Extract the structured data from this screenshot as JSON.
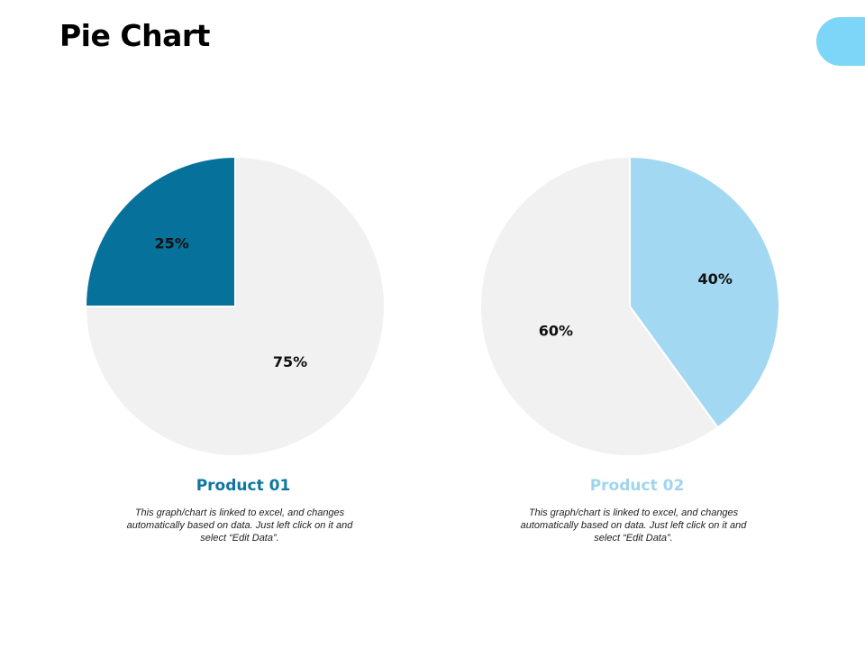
{
  "title": "Pie Chart",
  "colors": {
    "accent_tab": "#7dd6f7",
    "rest": "#f1f1f1"
  },
  "chart_data": [
    {
      "type": "pie",
      "title": "Product 01",
      "title_color": "#0e76a0",
      "description": "This graph/chart is linked to excel, and changes automatically based on data. Just left click on it and select “Edit Data”.",
      "slices": [
        {
          "label": "25%",
          "value": 25,
          "color": "#06729c"
        },
        {
          "label": "75%",
          "value": 75,
          "color": "#f1f1f1"
        }
      ]
    },
    {
      "type": "pie",
      "title": "Product 02",
      "title_color": "#9ed5ee",
      "description": "This graph/chart is linked to excel, and changes automatically based on data. Just left click on it and select “Edit Data”.",
      "slices": [
        {
          "label": "40%",
          "value": 40,
          "color": "#a2d8f1"
        },
        {
          "label": "60%",
          "value": 60,
          "color": "#f1f1f1"
        }
      ]
    }
  ]
}
